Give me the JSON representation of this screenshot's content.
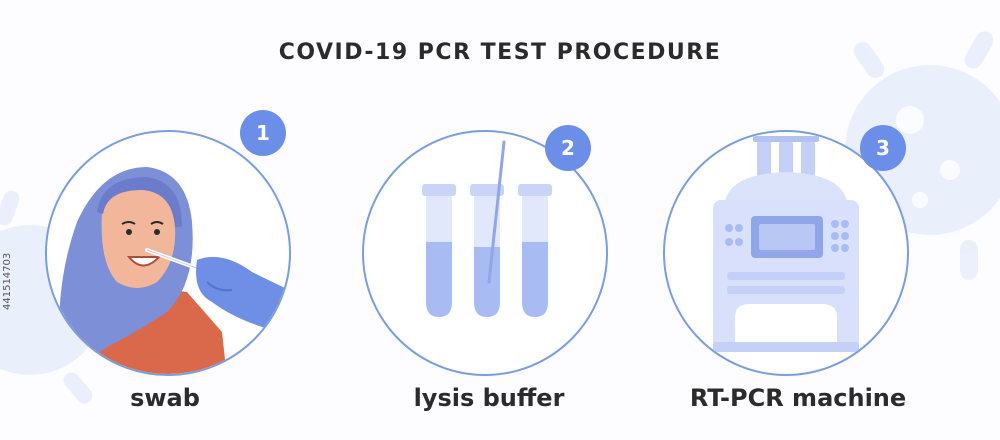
{
  "title": "COVID-19 PCR TEST PROCEDURE",
  "side_text": "441514703",
  "steps": [
    {
      "number": "1",
      "label": "swab",
      "icon": "person-swab-illustration"
    },
    {
      "number": "2",
      "label": "lysis buffer",
      "icon": "test-tubes-illustration"
    },
    {
      "number": "3",
      "label": "RT-PCR machine",
      "icon": "pcr-machine-illustration"
    }
  ],
  "colors": {
    "accent": "#6b8ee8",
    "circle_border": "#7a9de0",
    "text": "#2b2b2b",
    "hijab": "#7d8fd6",
    "glove": "#6f8ee6",
    "shirt": "#d9694a",
    "skin": "#f2b79b",
    "tube_fill": "#a8bcf3",
    "machine": "#d8e0fb"
  }
}
